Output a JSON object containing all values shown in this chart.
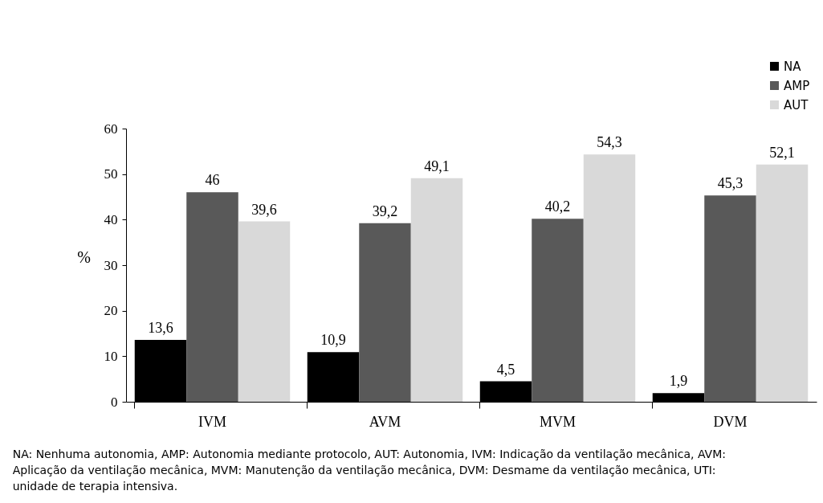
{
  "chart_data": {
    "type": "bar",
    "ylabel": "%",
    "categories": [
      "IVM",
      "AVM",
      "MVM",
      "DVM"
    ],
    "series": [
      {
        "name": "NA",
        "color": "#000000",
        "values": [
          13.6,
          10.9,
          4.5,
          1.9
        ],
        "value_labels": [
          "13,6",
          "10,9",
          "4,5",
          "1,9"
        ]
      },
      {
        "name": "AMP",
        "color": "#595959",
        "values": [
          46,
          39.2,
          40.2,
          45.3
        ],
        "value_labels": [
          "46",
          "39,2",
          "40,2",
          "45,3"
        ]
      },
      {
        "name": "AUT",
        "color": "#d9d9d9",
        "values": [
          39.6,
          49.1,
          54.3,
          52.1
        ],
        "value_labels": [
          "39,6",
          "49,1",
          "54,3",
          "52,1"
        ]
      }
    ],
    "ylim": [
      0,
      60
    ],
    "yticks": [
      0,
      10,
      20,
      30,
      40,
      50,
      60
    ],
    "grid": false,
    "legend": "top right",
    "annotations": [
      "NA: Nenhuma autonomia, AMP: Autonomia mediante protocolo, AUT: Autonomia, IVM: Indicação da ventilação mecânica, AVM: Aplicação da ventilação mecânica, MVM: Manutenção da ventilação mecânica, DVM: Desmame da ventilação mecânica, UTI: unidade de terapia intensiva."
    ]
  }
}
